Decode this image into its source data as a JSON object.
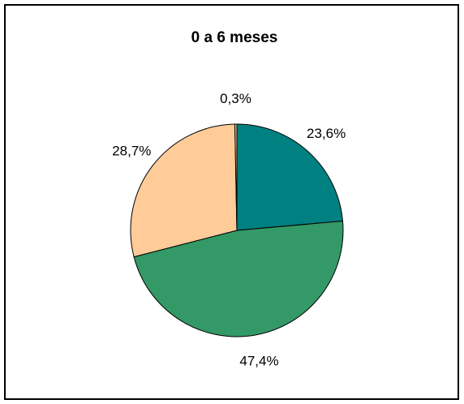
{
  "chart_data": {
    "type": "pie",
    "title": "0 a 6 meses",
    "slices": [
      {
        "label": "23,6%",
        "value": 23.6,
        "color": "#008080"
      },
      {
        "label": "47,4%",
        "value": 47.4,
        "color": "#339966"
      },
      {
        "label": "28,7%",
        "value": 28.7,
        "color": "#FFCC99"
      },
      {
        "label": "0,3%",
        "value": 0.3,
        "color": "#FFCC99"
      }
    ],
    "start_angle_deg": 0,
    "direction": "clockwise",
    "slice_outline_color": "#000000",
    "legend": "none"
  }
}
